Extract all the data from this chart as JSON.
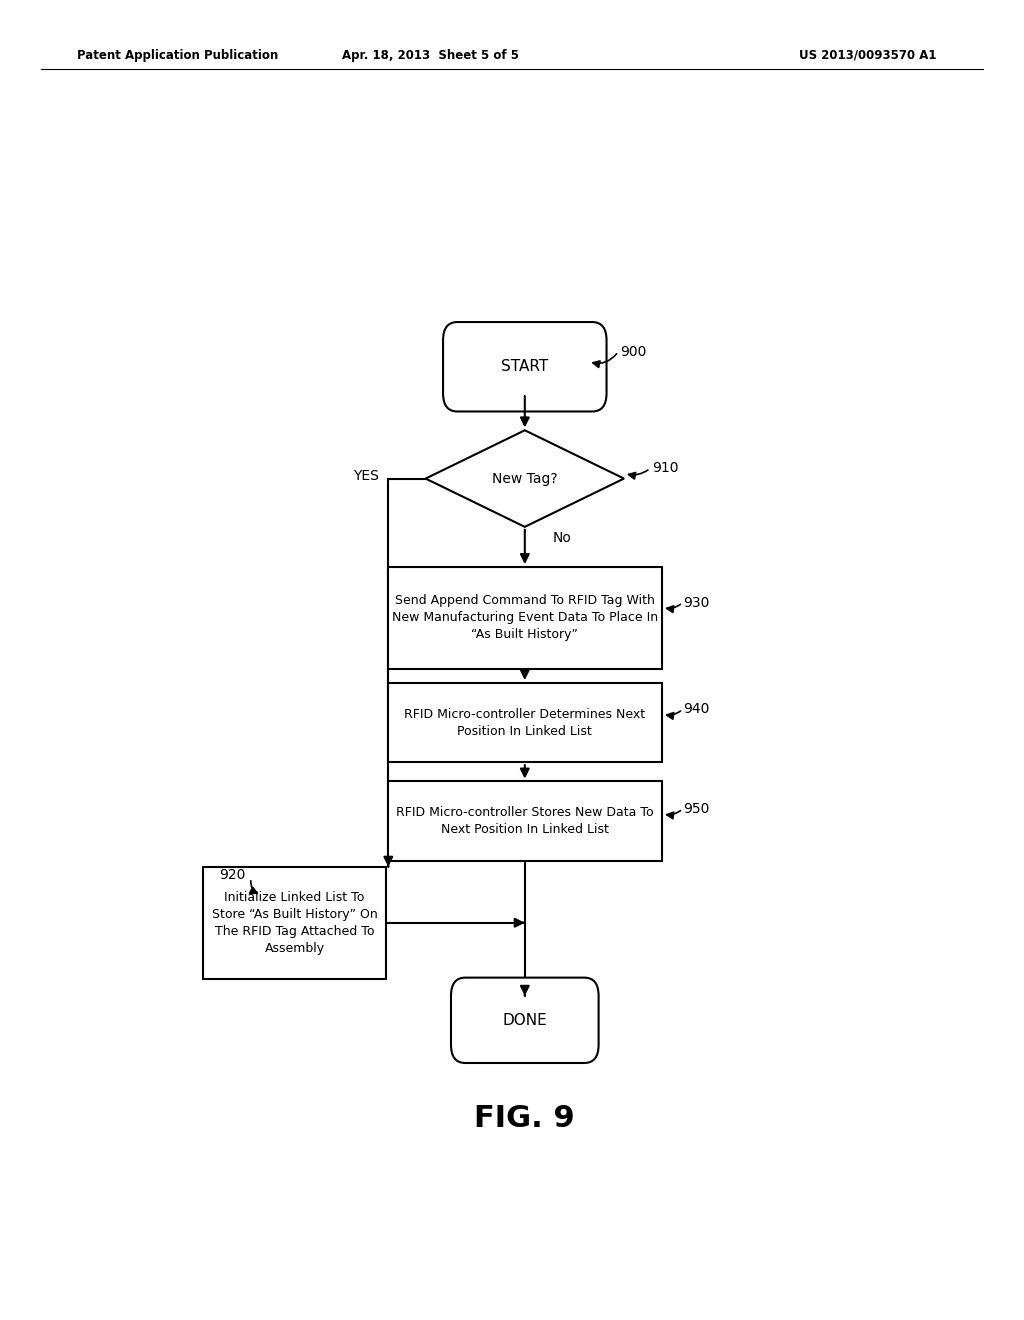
{
  "bg_color": "#ffffff",
  "line_color": "#000000",
  "text_color": "#000000",
  "header_left": "Patent Application Publication",
  "header_center": "Apr. 18, 2013  Sheet 5 of 5",
  "header_right": "US 2013/0093570 A1",
  "fig_label": "FIG. 9",
  "start_label": "START",
  "done_label": "DONE",
  "diamond_label": "New Tag?",
  "box930_label": "Send Append Command To RFID Tag With\nNew Manufacturing Event Data To Place In\n“As Built History”",
  "box940_label": "RFID Micro-controller Determines Next\nPosition In Linked List",
  "box950_label": "RFID Micro-controller Stores New Data To\nNext Position In Linked List",
  "box920_label": "Initialize Linked List To\nStore “As Built History” On\nThe RFID Tag Attached To\nAssembly",
  "yes_label": "YES",
  "no_label": "No",
  "ref_900": "900",
  "ref_910": "910",
  "ref_920": "920",
  "ref_930": "930",
  "ref_940": "940",
  "ref_950": "950"
}
